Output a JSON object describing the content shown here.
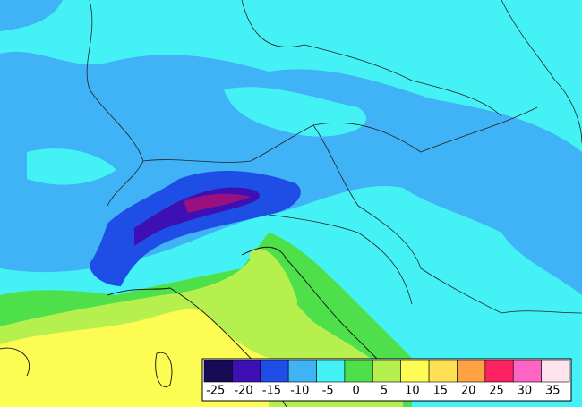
{
  "legend": {
    "labels": [
      -25,
      -20,
      -15,
      -10,
      -5,
      0,
      5,
      10,
      15,
      20,
      25,
      30,
      35
    ],
    "colors": [
      "#160c56",
      "#3e10b4",
      "#1e4ee6",
      "#40b2f6",
      "#44f2f6",
      "#4ee04a",
      "#b6f04e",
      "#fcfc52",
      "#fee054",
      "#fea244",
      "#fe2262",
      "#fe64c4",
      "#fee2ee"
    ]
  }
}
